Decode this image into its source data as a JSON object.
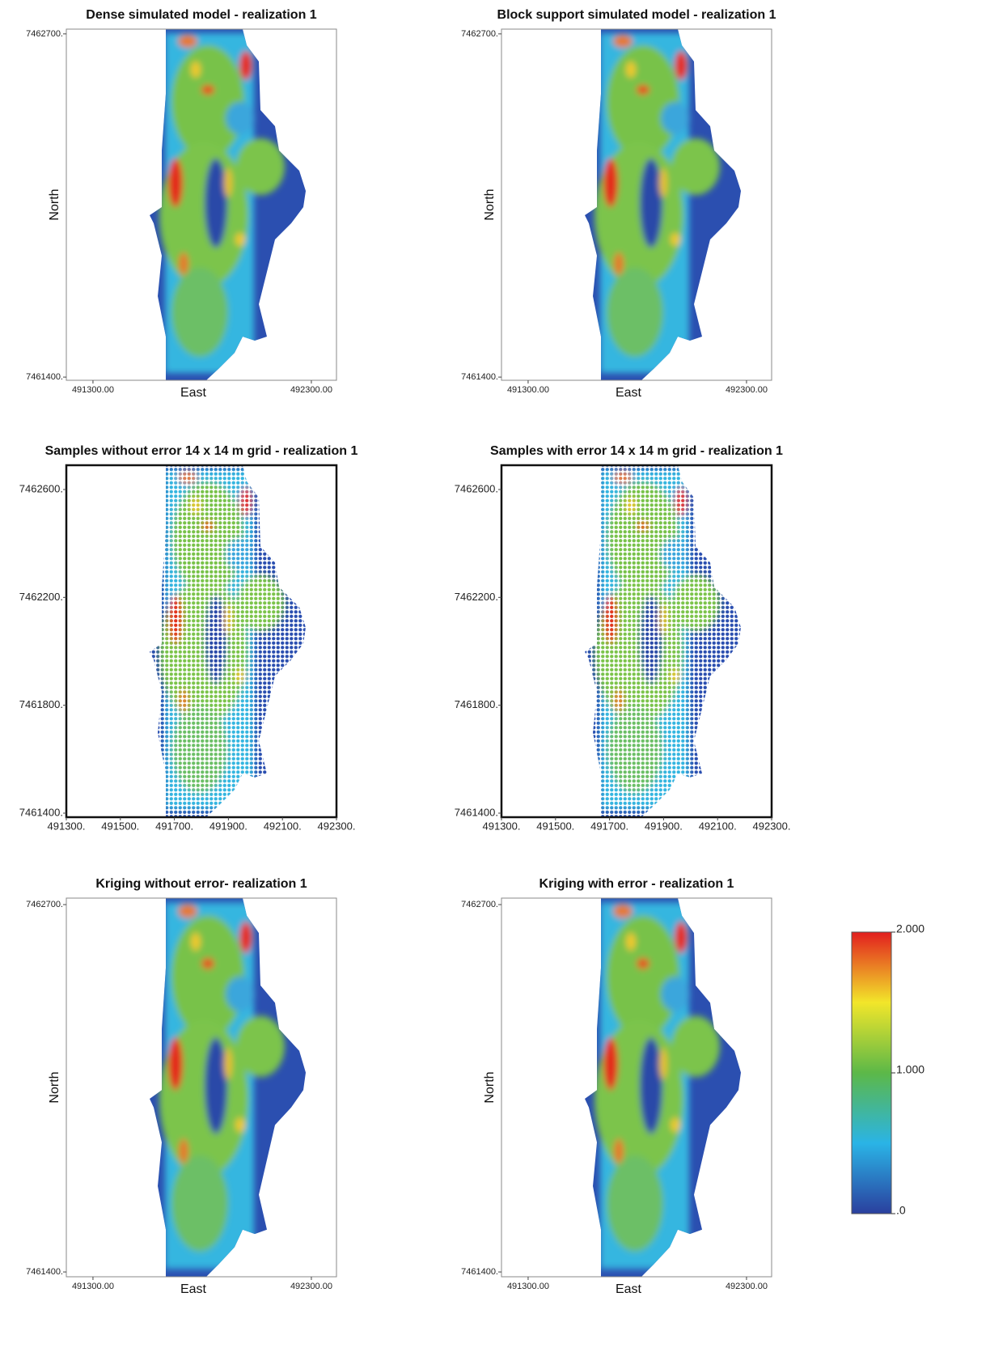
{
  "chart_data": [
    {
      "type": "heatmap",
      "title": "Dense simulated model - realization 1",
      "xlabel": "East",
      "ylabel": "North",
      "xlim": [
        491178,
        492415
      ],
      "ylim": [
        7461388,
        7462718
      ],
      "xticks": [
        {
          "value": 491300,
          "label": "491300.00"
        },
        {
          "value": 492300,
          "label": "492300.00"
        }
      ],
      "yticks": [
        {
          "value": 7461400,
          "label": "7461400."
        },
        {
          "value": 7462700,
          "label": "7462700."
        }
      ]
    },
    {
      "type": "heatmap",
      "title": "Block support simulated model - realization 1",
      "xlabel": "East",
      "ylabel": "North",
      "xlim": [
        491178,
        492415
      ],
      "ylim": [
        7461388,
        7462718
      ],
      "xticks": [
        {
          "value": 491300,
          "label": "491300.00"
        },
        {
          "value": 492300,
          "label": "492300.00"
        }
      ],
      "yticks": [
        {
          "value": 7461400,
          "label": "7461400."
        },
        {
          "value": 7462700,
          "label": "7462700."
        }
      ]
    },
    {
      "type": "heatmap",
      "title": "Samples without error 14 x 14 m grid - realization 1",
      "xlim": [
        491300,
        492300
      ],
      "ylim": [
        7461385,
        7462690
      ],
      "xticks": [
        {
          "value": 491300,
          "label": "491300."
        },
        {
          "value": 491500,
          "label": "491500."
        },
        {
          "value": 491700,
          "label": "491700."
        },
        {
          "value": 491900,
          "label": "491900."
        },
        {
          "value": 492100,
          "label": "492100."
        },
        {
          "value": 492300,
          "label": "492300."
        }
      ],
      "yticks": [
        {
          "value": 7461400,
          "label": "7461400."
        },
        {
          "value": 7461800,
          "label": "7461800."
        },
        {
          "value": 7462200,
          "label": "7462200."
        },
        {
          "value": 7462600,
          "label": "7462600."
        }
      ]
    },
    {
      "type": "heatmap",
      "title": "Samples with error 14 x 14 m grid - realization 1",
      "xlim": [
        491300,
        492300
      ],
      "ylim": [
        7461385,
        7462690
      ],
      "xticks": [
        {
          "value": 491300,
          "label": "491300."
        },
        {
          "value": 491500,
          "label": "491500."
        },
        {
          "value": 491700,
          "label": "491700."
        },
        {
          "value": 491900,
          "label": "491900."
        },
        {
          "value": 492100,
          "label": "492100."
        },
        {
          "value": 492300,
          "label": "492300."
        }
      ],
      "yticks": [
        {
          "value": 7461400,
          "label": "7461400."
        },
        {
          "value": 7461800,
          "label": "7461800."
        },
        {
          "value": 7462200,
          "label": "7462200."
        },
        {
          "value": 7462600,
          "label": "7462600."
        }
      ]
    },
    {
      "type": "heatmap",
      "title": "Kriging without error- realization 1",
      "xlabel": "East",
      "ylabel": "North",
      "xlim": [
        491178,
        492415
      ],
      "ylim": [
        7461383,
        7462723
      ],
      "xticks": [
        {
          "value": 491300,
          "label": "491300.00"
        },
        {
          "value": 492300,
          "label": "492300.00"
        }
      ],
      "yticks": [
        {
          "value": 7461400,
          "label": "7461400."
        },
        {
          "value": 7462700,
          "label": "7462700."
        }
      ]
    },
    {
      "type": "heatmap",
      "title": "Kriging with error - realization 1",
      "xlabel": "East",
      "ylabel": "North",
      "xlim": [
        491178,
        492415
      ],
      "ylim": [
        7461383,
        7462723
      ],
      "xticks": [
        {
          "value": 491300,
          "label": "491300.00"
        },
        {
          "value": 492300,
          "label": "492300.00"
        }
      ],
      "yticks": [
        {
          "value": 7461400,
          "label": "7461400."
        },
        {
          "value": 7462700,
          "label": "7462700."
        }
      ]
    },
    {
      "type": "colorbar",
      "zlim": [
        0,
        2
      ],
      "zticks": [
        {
          "value": 0,
          "label": ".0"
        },
        {
          "value": 1,
          "label": "1.000"
        },
        {
          "value": 2,
          "label": "2.000"
        }
      ]
    }
  ]
}
